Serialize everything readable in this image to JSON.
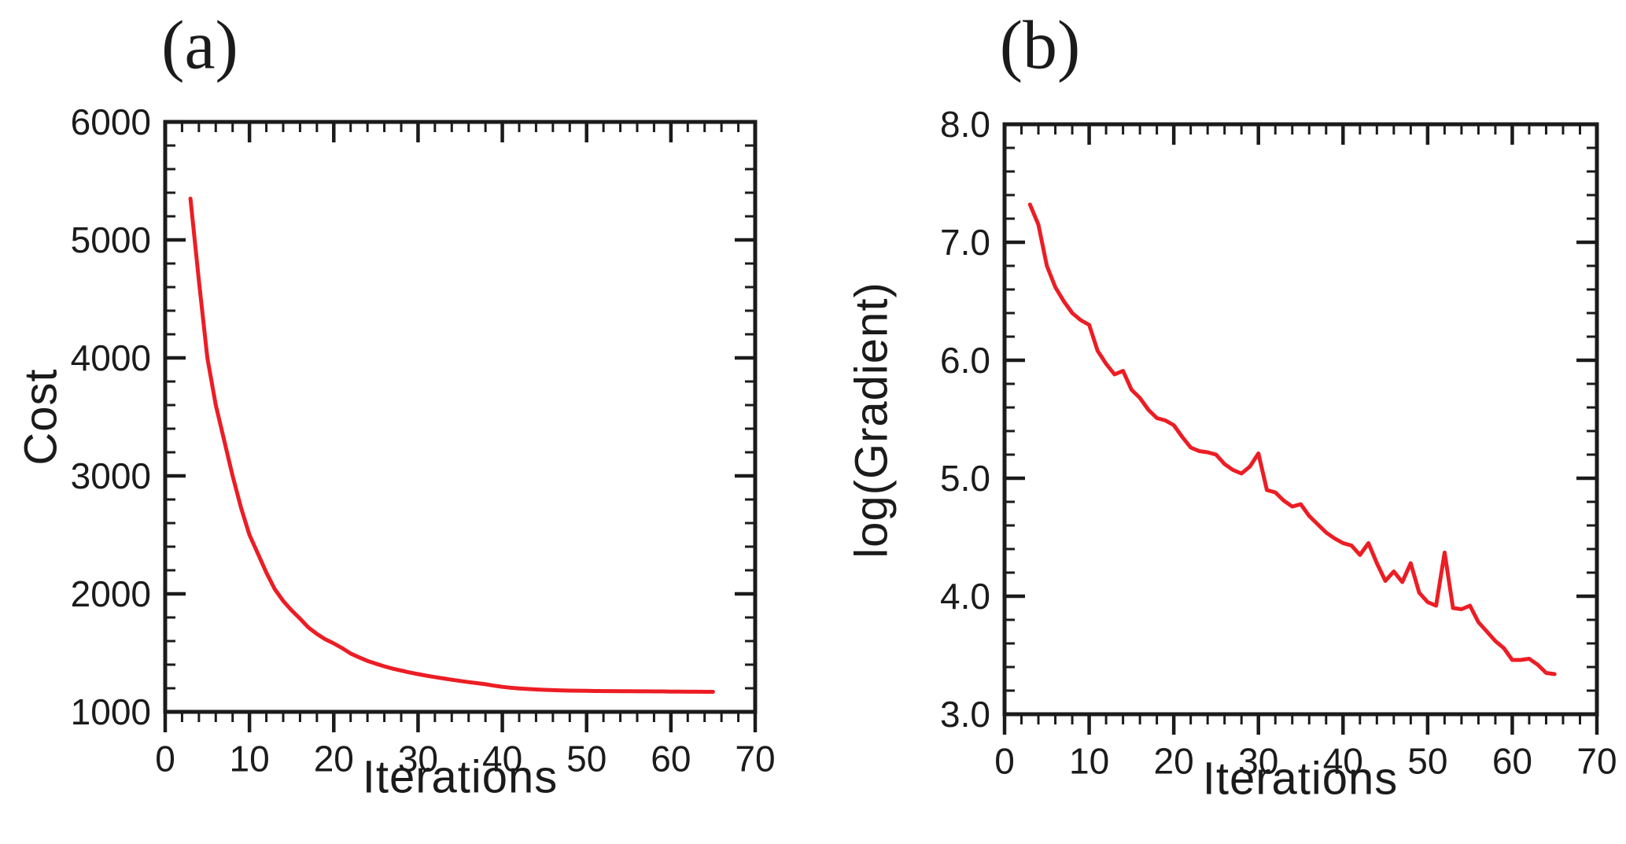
{
  "colors": {
    "line": "#ec1d24",
    "axis": "#1b1b1b",
    "text": "#1b1b1b",
    "background": "#ffffff"
  },
  "chart_data": [
    {
      "type": "line",
      "panel_label": "(a)",
      "xlabel": "Iterations",
      "ylabel": "Cost",
      "xlim": [
        0,
        70
      ],
      "ylim": [
        1000,
        6000
      ],
      "x_ticks": [
        0,
        10,
        20,
        30,
        40,
        50,
        60,
        70
      ],
      "x_tick_labels": [
        "0",
        "10",
        "20",
        "30",
        "40",
        "50",
        "60",
        "70"
      ],
      "x_minor_step": 2,
      "y_ticks": [
        1000,
        2000,
        3000,
        4000,
        5000,
        6000
      ],
      "y_tick_labels": [
        "1000",
        "2000",
        "3000",
        "4000",
        "5000",
        "6000"
      ],
      "y_minor_step": 200,
      "grid": false,
      "legend": "none",
      "series": [
        {
          "name": "cost",
          "x": [
            3,
            4,
            5,
            6,
            7,
            8,
            9,
            10,
            11,
            12,
            13,
            14,
            15,
            16,
            17,
            18,
            19,
            20,
            21,
            22,
            23,
            24,
            25,
            26,
            27,
            28,
            29,
            30,
            31,
            32,
            33,
            34,
            35,
            36,
            37,
            38,
            39,
            40,
            41,
            42,
            43,
            44,
            45,
            46,
            47,
            48,
            49,
            50,
            51,
            52,
            53,
            54,
            55,
            56,
            57,
            58,
            59,
            60,
            61,
            62,
            63,
            64,
            65
          ],
          "y": [
            5350,
            4650,
            4000,
            3600,
            3300,
            3000,
            2730,
            2500,
            2340,
            2180,
            2040,
            1940,
            1860,
            1790,
            1715,
            1660,
            1615,
            1580,
            1540,
            1495,
            1462,
            1432,
            1408,
            1386,
            1366,
            1350,
            1334,
            1320,
            1307,
            1295,
            1283,
            1272,
            1262,
            1252,
            1243,
            1234,
            1222,
            1212,
            1204,
            1198,
            1194,
            1190,
            1187,
            1184,
            1182,
            1180,
            1179,
            1178,
            1177,
            1176,
            1176,
            1175,
            1175,
            1174,
            1174,
            1173,
            1173,
            1172,
            1172,
            1171,
            1171,
            1170,
            1170
          ]
        }
      ]
    },
    {
      "type": "line",
      "panel_label": "(b)",
      "xlabel": "Iterations",
      "ylabel": "log(Gradient)",
      "xlim": [
        0,
        70
      ],
      "ylim": [
        3.0,
        8.0
      ],
      "x_ticks": [
        0,
        10,
        20,
        30,
        40,
        50,
        60,
        70
      ],
      "x_tick_labels": [
        "0",
        "10",
        "20",
        "30",
        "40",
        "50",
        "60",
        "70"
      ],
      "x_minor_step": 2,
      "y_ticks": [
        3.0,
        4.0,
        5.0,
        6.0,
        7.0,
        8.0
      ],
      "y_tick_labels": [
        "3.0",
        "4.0",
        "5.0",
        "6.0",
        "7.0",
        "8.0"
      ],
      "y_minor_step": 0.2,
      "grid": false,
      "legend": "none",
      "series": [
        {
          "name": "log_gradient",
          "x": [
            3,
            4,
            5,
            6,
            7,
            8,
            9,
            10,
            11,
            12,
            13,
            14,
            15,
            16,
            17,
            18,
            19,
            20,
            21,
            22,
            23,
            24,
            25,
            26,
            27,
            28,
            29,
            30,
            31,
            32,
            33,
            34,
            35,
            36,
            37,
            38,
            39,
            40,
            41,
            42,
            43,
            44,
            45,
            46,
            47,
            48,
            49,
            50,
            51,
            52,
            53,
            54,
            55,
            56,
            57,
            58,
            59,
            60,
            61,
            62,
            63,
            64,
            65
          ],
          "y": [
            7.32,
            7.15,
            6.8,
            6.62,
            6.5,
            6.4,
            6.34,
            6.3,
            6.08,
            5.97,
            5.88,
            5.91,
            5.75,
            5.68,
            5.58,
            5.51,
            5.49,
            5.45,
            5.35,
            5.26,
            5.23,
            5.22,
            5.2,
            5.12,
            5.07,
            5.04,
            5.1,
            5.21,
            4.9,
            4.88,
            4.81,
            4.76,
            4.78,
            4.68,
            4.61,
            4.54,
            4.49,
            4.45,
            4.43,
            4.35,
            4.45,
            4.28,
            4.13,
            4.21,
            4.12,
            4.28,
            4.03,
            3.95,
            3.92,
            4.37,
            3.9,
            3.89,
            3.92,
            3.78,
            3.7,
            3.62,
            3.56,
            3.46,
            3.46,
            3.47,
            3.42,
            3.35,
            3.34
          ]
        }
      ]
    }
  ]
}
